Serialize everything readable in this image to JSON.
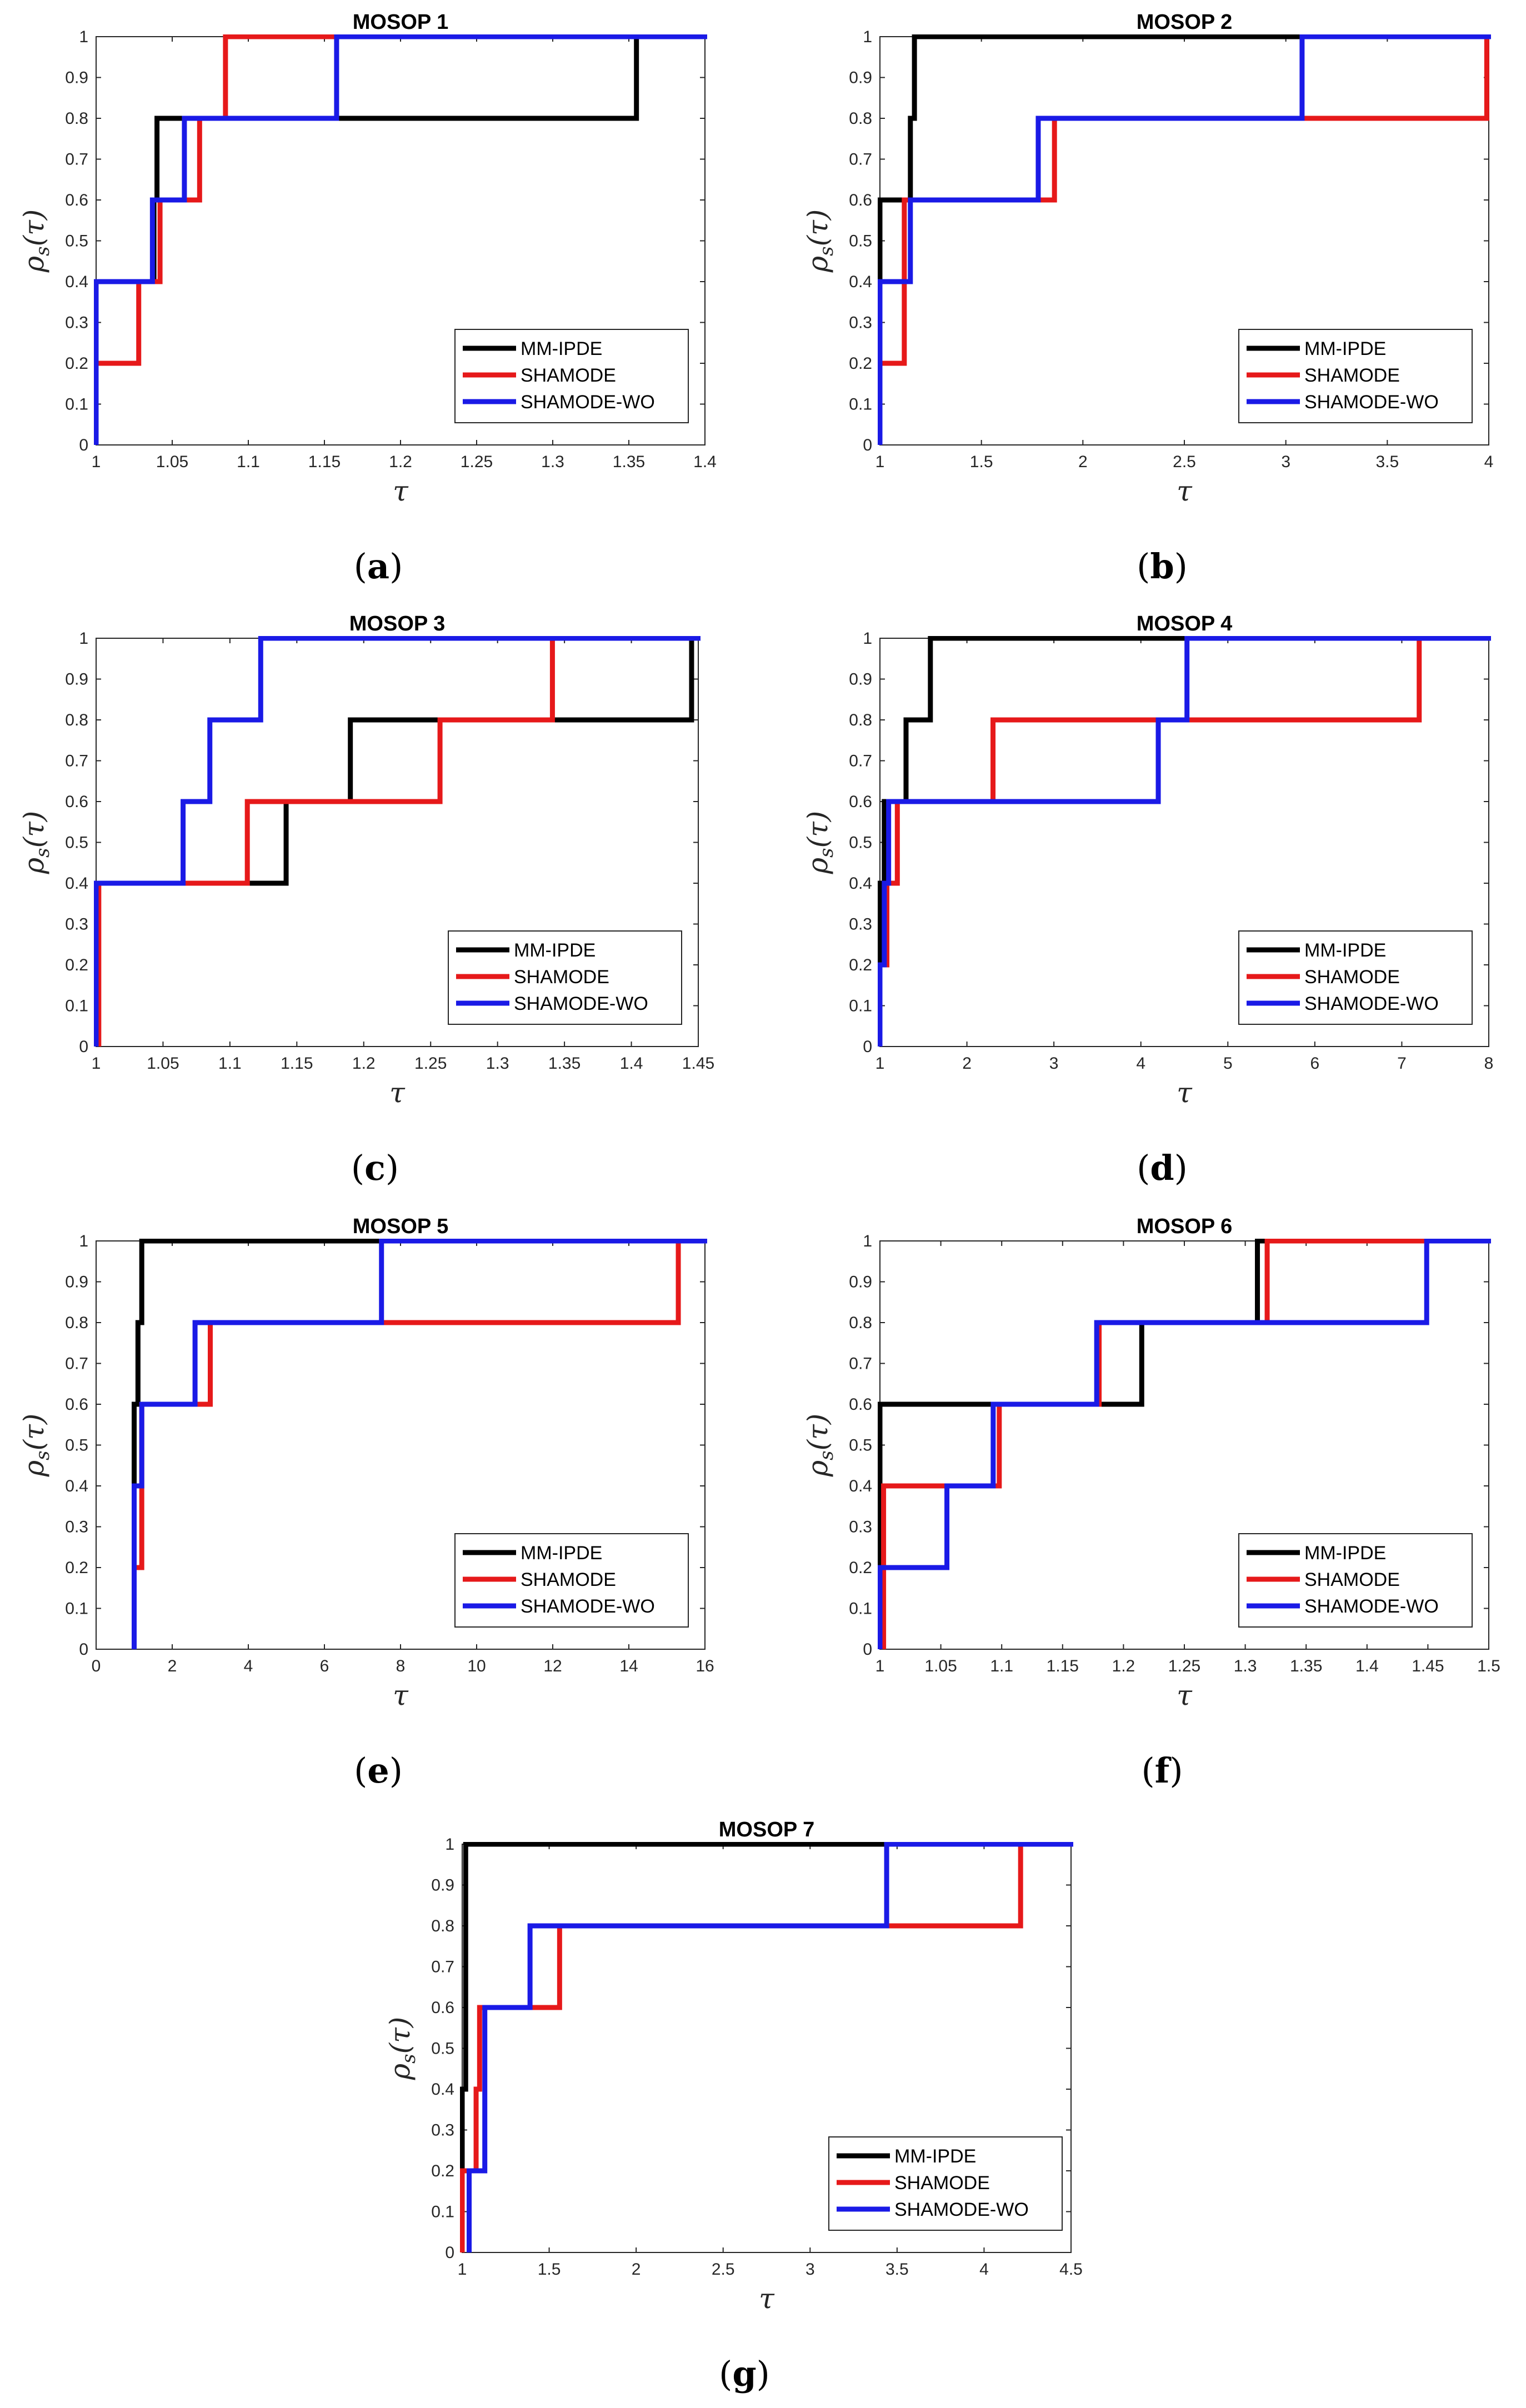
{
  "figure": {
    "legend_entries": [
      "MM-IPDE",
      "SHAMODE",
      "SHAMODE-WO"
    ],
    "colors": {
      "MM-IPDE": "#000000",
      "SHAMODE": "#e6191a",
      "SHAMODE-WO": "#1a1ae6"
    }
  },
  "chart_data": [
    {
      "type": "line",
      "step": true,
      "title": "MOSOP 1",
      "subfigure": "a",
      "xlabel": "τ",
      "ylabel": "ρs(τ)",
      "xlim": [
        1,
        1.4
      ],
      "ylim": [
        0,
        1
      ],
      "xticks": [
        "1",
        "1.05",
        "1.1",
        "1.15",
        "1.2",
        "1.25",
        "1.3",
        "1.35",
        "1.4"
      ],
      "yticks": [
        "0",
        "0.1",
        "0.2",
        "0.3",
        "0.4",
        "0.5",
        "0.6",
        "0.7",
        "0.8",
        "0.9",
        "1"
      ],
      "legend_position": "bottom-right",
      "series": [
        {
          "name": "MM-IPDE",
          "x": [
            1,
            1.038,
            1.04,
            1.09,
            1.355
          ],
          "y": [
            0.4,
            0.6,
            0.8,
            0.8,
            1.0
          ]
        },
        {
          "name": "SHAMODE",
          "x": [
            1,
            1.028,
            1.042,
            1.068,
            1.085
          ],
          "y": [
            0.2,
            0.4,
            0.6,
            0.8,
            1.0
          ]
        },
        {
          "name": "SHAMODE-WO",
          "x": [
            1,
            1.037,
            1.058,
            1.158,
            1.158
          ],
          "y": [
            0.4,
            0.6,
            0.8,
            1.0,
            1.0
          ]
        }
      ]
    },
    {
      "type": "line",
      "step": true,
      "title": "MOSOP 2",
      "subfigure": "b",
      "xlabel": "τ",
      "ylabel": "ρs(τ)",
      "xlim": [
        1,
        4
      ],
      "ylim": [
        0,
        1
      ],
      "xticks": [
        "1",
        "1.5",
        "2",
        "2.5",
        "3",
        "3.5",
        "4"
      ],
      "yticks": [
        "0",
        "0.1",
        "0.2",
        "0.3",
        "0.4",
        "0.5",
        "0.6",
        "0.7",
        "0.8",
        "0.9",
        "1"
      ],
      "legend_position": "bottom-right",
      "series": [
        {
          "name": "MM-IPDE",
          "x": [
            1,
            1,
            1.12,
            1.15,
            1.17
          ],
          "y": [
            0.4,
            0.6,
            0.6,
            0.8,
            1.0
          ]
        },
        {
          "name": "SHAMODE",
          "x": [
            1,
            1.12,
            1.12,
            1.86,
            3.99
          ],
          "y": [
            0.2,
            0.4,
            0.6,
            0.8,
            1.0
          ]
        },
        {
          "name": "SHAMODE-WO",
          "x": [
            1,
            1.15,
            1.15,
            1.78,
            3.08
          ],
          "y": [
            0.4,
            0.6,
            0.6,
            0.8,
            1.0
          ]
        }
      ]
    },
    {
      "type": "line",
      "step": true,
      "title": "MOSOP 3",
      "subfigure": "c",
      "xlabel": "τ",
      "ylabel": "ρs(τ)",
      "xlim": [
        1,
        1.45
      ],
      "ylim": [
        0,
        1
      ],
      "xticks": [
        "1",
        "1.05",
        "1.1",
        "1.15",
        "1.2",
        "1.25",
        "1.3",
        "1.35",
        "1.4",
        "1.45"
      ],
      "yticks": [
        "0",
        "0.1",
        "0.2",
        "0.3",
        "0.4",
        "0.5",
        "0.6",
        "0.7",
        "0.8",
        "0.9",
        "1"
      ],
      "legend_position": "bottom-right",
      "series": [
        {
          "name": "MM-IPDE",
          "x": [
            1,
            1.142,
            1.19,
            1.445,
            1.445
          ],
          "y": [
            0.4,
            0.6,
            0.8,
            1.0,
            1.0
          ]
        },
        {
          "name": "SHAMODE",
          "x": [
            1.002,
            1.002,
            1.113,
            1.257,
            1.341
          ],
          "y": [
            0.2,
            0.4,
            0.6,
            0.8,
            1.0
          ]
        },
        {
          "name": "SHAMODE-WO",
          "x": [
            1,
            1.065,
            1.085,
            1.123,
            1.123
          ],
          "y": [
            0.4,
            0.6,
            0.8,
            1.0,
            1.0
          ]
        }
      ]
    },
    {
      "type": "line",
      "step": true,
      "title": "MOSOP 4",
      "subfigure": "d",
      "xlabel": "τ",
      "ylabel": "ρs(τ)",
      "xlim": [
        1,
        8
      ],
      "ylim": [
        0,
        1
      ],
      "xticks": [
        "1",
        "2",
        "3",
        "4",
        "5",
        "6",
        "7",
        "8"
      ],
      "yticks": [
        "0",
        "0.1",
        "0.2",
        "0.3",
        "0.4",
        "0.5",
        "0.6",
        "0.7",
        "0.8",
        "0.9",
        "1"
      ],
      "legend_position": "bottom-right",
      "series": [
        {
          "name": "MM-IPDE",
          "x": [
            1,
            1.05,
            1.3,
            1.58,
            1.58
          ],
          "y": [
            0.4,
            0.6,
            0.8,
            1.0,
            1.0
          ]
        },
        {
          "name": "SHAMODE",
          "x": [
            1,
            1.08,
            1.2,
            2.3,
            7.2
          ],
          "y": [
            0.2,
            0.4,
            0.6,
            0.8,
            1.0
          ]
        },
        {
          "name": "SHAMODE-WO",
          "x": [
            1,
            1.05,
            1.1,
            4.2,
            4.53
          ],
          "y": [
            0.2,
            0.4,
            0.6,
            0.8,
            1.0
          ]
        }
      ]
    },
    {
      "type": "line",
      "step": true,
      "title": "MOSOP 5",
      "subfigure": "e",
      "xlabel": "τ",
      "ylabel": "ρs(τ)",
      "xlim": [
        0,
        16
      ],
      "ylim": [
        0,
        1
      ],
      "xticks": [
        "0",
        "2",
        "4",
        "6",
        "8",
        "10",
        "12",
        "14",
        "16"
      ],
      "yticks": [
        "0",
        "0.1",
        "0.2",
        "0.3",
        "0.4",
        "0.5",
        "0.6",
        "0.7",
        "0.8",
        "0.9",
        "1"
      ],
      "legend_position": "bottom-right",
      "series": [
        {
          "name": "MM-IPDE",
          "x": [
            1,
            1,
            1.1,
            1.2,
            7.5
          ],
          "y": [
            0.4,
            0.6,
            0.8,
            1.0,
            1.0
          ]
        },
        {
          "name": "SHAMODE",
          "x": [
            1,
            1.2,
            1.2,
            3.0,
            15.3
          ],
          "y": [
            0.2,
            0.4,
            0.6,
            0.8,
            1.0
          ]
        },
        {
          "name": "SHAMODE-WO",
          "x": [
            1,
            1.2,
            1.2,
            2.6,
            7.5
          ],
          "y": [
            0.4,
            0.6,
            0.6,
            0.8,
            1.0
          ]
        }
      ]
    },
    {
      "type": "line",
      "step": true,
      "title": "MOSOP 6",
      "subfigure": "f",
      "xlabel": "τ",
      "ylabel": "ρs(τ)",
      "xlim": [
        1,
        1.5
      ],
      "ylim": [
        0,
        1
      ],
      "xticks": [
        "1",
        "1.05",
        "1.1",
        "1.15",
        "1.2",
        "1.25",
        "1.3",
        "1.35",
        "1.4",
        "1.45",
        "1.5"
      ],
      "yticks": [
        "0",
        "0.1",
        "0.2",
        "0.3",
        "0.4",
        "0.5",
        "0.6",
        "0.7",
        "0.8",
        "0.9",
        "1"
      ],
      "legend_position": "bottom-right",
      "series": [
        {
          "name": "MM-IPDE",
          "x": [
            1,
            1,
            1.18,
            1.215,
            1.31
          ],
          "y": [
            0.6,
            0.6,
            0.6,
            0.8,
            1.0
          ]
        },
        {
          "name": "SHAMODE",
          "x": [
            1.003,
            1.003,
            1.098,
            1.18,
            1.318
          ],
          "y": [
            0.2,
            0.4,
            0.6,
            0.8,
            1.0
          ]
        },
        {
          "name": "SHAMODE-WO",
          "x": [
            1,
            1.055,
            1.093,
            1.178,
            1.449
          ],
          "y": [
            0.2,
            0.4,
            0.6,
            0.8,
            1.0
          ]
        }
      ]
    },
    {
      "type": "line",
      "step": true,
      "title": "MOSOP 7",
      "subfigure": "g",
      "xlabel": "τ",
      "ylabel": "ρs(τ)",
      "xlim": [
        1,
        4.5
      ],
      "ylim": [
        0,
        1
      ],
      "xticks": [
        "1",
        "1.5",
        "2",
        "2.5",
        "3",
        "3.5",
        "4",
        "4.5"
      ],
      "yticks": [
        "0",
        "0.1",
        "0.2",
        "0.3",
        "0.4",
        "0.5",
        "0.6",
        "0.7",
        "0.8",
        "0.9",
        "1"
      ],
      "legend_position": "bottom-left",
      "series": [
        {
          "name": "MM-IPDE",
          "x": [
            1,
            1,
            1.02,
            1.02,
            1.02
          ],
          "y": [
            0.2,
            0.4,
            0.6,
            0.8,
            1.0
          ]
        },
        {
          "name": "SHAMODE",
          "x": [
            1,
            1.08,
            1.1,
            1.56,
            4.21
          ],
          "y": [
            0.2,
            0.4,
            0.6,
            0.8,
            1.0
          ]
        },
        {
          "name": "SHAMODE-WO",
          "x": [
            1.04,
            1.04,
            1.13,
            1.39,
            3.44
          ],
          "y": [
            0.2,
            0.2,
            0.6,
            0.8,
            1.0
          ]
        }
      ]
    }
  ]
}
